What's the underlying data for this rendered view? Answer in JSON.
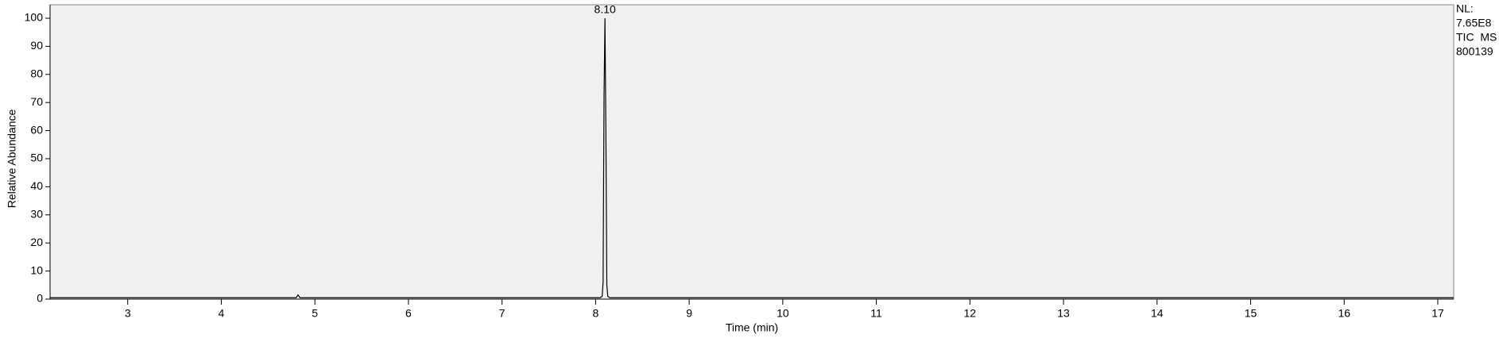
{
  "chart_data": {
    "type": "line",
    "xlabel": "Time (min)",
    "ylabel": "Relative Abundance",
    "x": [
      2.17,
      3,
      4,
      4.8,
      4.82,
      4.84,
      5,
      6,
      7,
      8,
      8.05,
      8.07,
      8.08,
      8.09,
      8.1,
      8.11,
      8.12,
      8.13,
      8.15,
      9,
      10,
      11,
      12,
      13,
      14,
      15,
      16,
      17,
      17.17
    ],
    "values": [
      0.5,
      0.5,
      0.5,
      0.5,
      1.5,
      0.5,
      0.5,
      0.5,
      0.5,
      0.5,
      0.5,
      1,
      6,
      72,
      100,
      59,
      5,
      1,
      0.5,
      0.5,
      0.5,
      0.5,
      0.5,
      0.5,
      0.5,
      0.5,
      0.5,
      0.5,
      0.5
    ],
    "color": "#000000",
    "xlim": [
      2.17,
      17.17
    ],
    "xticks": [
      3,
      4,
      5,
      6,
      7,
      8,
      9,
      10,
      11,
      12,
      13,
      14,
      15,
      16,
      17
    ],
    "ylim": [
      0,
      104.8
    ],
    "yticks": [
      0,
      10,
      20,
      30,
      40,
      50,
      60,
      70,
      80,
      90,
      100
    ],
    "annotations": [
      {
        "text": "8.10",
        "x": 8.1,
        "y": 100
      }
    ],
    "side_text": [
      "NL:",
      "7.65E8",
      "TIC  MS",
      "800139"
    ]
  }
}
